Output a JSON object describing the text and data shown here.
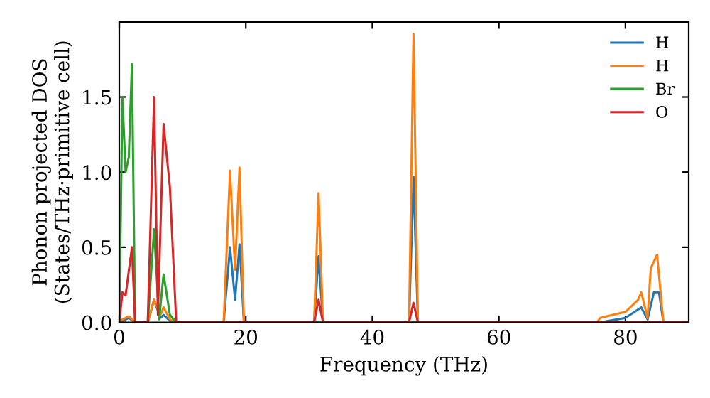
{
  "chart_data": {
    "type": "line",
    "xlabel": "Frequency (THz)",
    "ylabel": "Phonon projected DOS\n(States/THz·primitive cell)",
    "xlim": [
      0,
      90
    ],
    "ylim": [
      0,
      2.0
    ],
    "xticks": [
      0,
      20,
      40,
      60,
      80
    ],
    "yticks": [
      {
        "value": 0,
        "label": "0.0"
      },
      0.5,
      {
        "value": 1,
        "label": "1.0"
      },
      1.5
    ],
    "legend": "top right",
    "grid": false,
    "marker": "none",
    "line_style": "solid",
    "series": [
      {
        "name": "H",
        "color": "#1f77b4",
        "x": [
          0,
          0.5,
          1.5,
          2.5,
          4.5,
          5.5,
          6.5,
          7,
          8,
          9,
          16.5,
          17.5,
          18.3,
          19,
          19.7,
          30.8,
          31.5,
          32.2,
          45.8,
          46.5,
          47.2,
          76,
          80,
          82.5,
          83.5,
          84.5,
          85.3,
          86,
          90
        ],
        "values": [
          0,
          0.01,
          0.03,
          0,
          0,
          0.15,
          0.03,
          0.05,
          0.01,
          0,
          0,
          0.5,
          0.15,
          0.52,
          0,
          0,
          0.44,
          0,
          0,
          0.97,
          0,
          0,
          0.03,
          0.1,
          0.02,
          0.2,
          0.2,
          0,
          0
        ]
      },
      {
        "name": "H",
        "color": "#ff7f0e",
        "x": [
          0,
          0.5,
          1.5,
          2.5,
          4.5,
          5.5,
          6.5,
          7,
          8,
          9,
          16.5,
          17.5,
          18.3,
          19,
          19.7,
          30.8,
          31.5,
          32.2,
          45.8,
          46.5,
          47.2,
          75.5,
          76,
          80,
          82,
          82.5,
          83.5,
          84,
          85,
          86,
          90
        ],
        "values": [
          0,
          0.02,
          0.04,
          0,
          0,
          0.15,
          0.05,
          0.1,
          0.02,
          0,
          0,
          1.01,
          0.35,
          1.03,
          0,
          0,
          0.86,
          0,
          0,
          1.92,
          0,
          0,
          0.03,
          0.07,
          0.15,
          0.2,
          0.03,
          0.36,
          0.45,
          0,
          0
        ]
      },
      {
        "name": "Br",
        "color": "#2ca02c",
        "x": [
          0,
          0.5,
          1,
          1.5,
          2,
          2.5,
          4.5,
          5.5,
          6.3,
          7,
          8,
          9,
          90
        ],
        "values": [
          0,
          1.5,
          1.0,
          1.1,
          1.72,
          0,
          0,
          0.62,
          0.02,
          0.32,
          0.05,
          0,
          0
        ]
      },
      {
        "name": "O",
        "color": "#d62728",
        "x": [
          0,
          0.5,
          1,
          2,
          2.5,
          4.5,
          5.5,
          6.1,
          7,
          8,
          9,
          30.8,
          31.5,
          32.2,
          45.8,
          46.5,
          47.2,
          90
        ],
        "values": [
          0,
          0.2,
          0.18,
          0.5,
          0,
          0,
          1.5,
          0.05,
          1.32,
          0.9,
          0,
          0,
          0.15,
          0,
          0,
          0.13,
          0,
          0
        ]
      }
    ]
  }
}
